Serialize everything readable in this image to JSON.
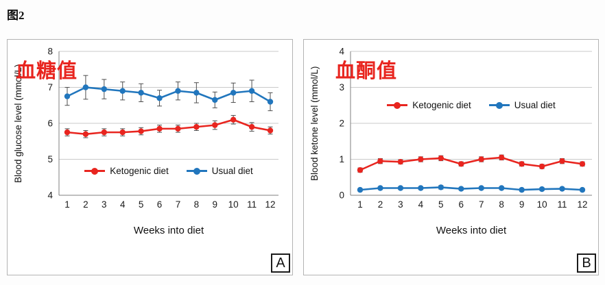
{
  "figure_label": "图2",
  "chart_data": [
    {
      "type": "line",
      "panel_label": "A",
      "annotation": "血糖值",
      "annotation_color": "#e8251f",
      "ylabel": "Blood glucose level (mmol/L)",
      "xlabel": "Weeks into diet",
      "ylim": [
        4,
        8
      ],
      "yticks": [
        4,
        5,
        6,
        7,
        8
      ],
      "x": [
        1,
        2,
        3,
        4,
        5,
        6,
        7,
        8,
        9,
        10,
        11,
        12
      ],
      "grid": true,
      "legend_position": "inside lower center",
      "series": [
        {
          "name": "Ketogenic diet",
          "color": "#e8251f",
          "values": [
            5.75,
            5.7,
            5.75,
            5.75,
            5.78,
            5.85,
            5.85,
            5.9,
            5.95,
            6.1,
            5.9,
            5.8
          ],
          "errors": [
            0.1,
            0.1,
            0.1,
            0.1,
            0.1,
            0.1,
            0.1,
            0.1,
            0.12,
            0.12,
            0.12,
            0.1
          ]
        },
        {
          "name": "Usual diet",
          "color": "#2176bd",
          "values": [
            6.75,
            7.0,
            6.95,
            6.9,
            6.85,
            6.7,
            6.9,
            6.85,
            6.65,
            6.85,
            6.9,
            6.6
          ],
          "errors": [
            0.25,
            0.33,
            0.27,
            0.25,
            0.25,
            0.22,
            0.25,
            0.28,
            0.22,
            0.27,
            0.3,
            0.25
          ]
        }
      ]
    },
    {
      "type": "line",
      "panel_label": "B",
      "annotation": "血酮值",
      "annotation_color": "#e8251f",
      "ylabel": "Blood ketone level (mmol/L)",
      "xlabel": "Weeks into diet",
      "ylim": [
        0,
        4
      ],
      "yticks": [
        0,
        1,
        2,
        3,
        4
      ],
      "x": [
        1,
        2,
        3,
        4,
        5,
        6,
        7,
        8,
        9,
        10,
        11,
        12
      ],
      "grid": true,
      "legend_position": "inside upper center",
      "series": [
        {
          "name": "Ketogenic diet",
          "color": "#e8251f",
          "values": [
            0.7,
            0.95,
            0.93,
            1.0,
            1.03,
            0.87,
            1.0,
            1.05,
            0.87,
            0.8,
            0.95,
            0.87
          ],
          "errors": [
            0.06,
            0.07,
            0.06,
            0.07,
            0.07,
            0.06,
            0.07,
            0.07,
            0.06,
            0.06,
            0.07,
            0.06
          ]
        },
        {
          "name": "Usual diet",
          "color": "#2176bd",
          "values": [
            0.15,
            0.2,
            0.2,
            0.2,
            0.22,
            0.18,
            0.2,
            0.2,
            0.15,
            0.17,
            0.18,
            0.15
          ],
          "errors": [
            0.04,
            0.04,
            0.04,
            0.04,
            0.05,
            0.04,
            0.04,
            0.04,
            0.04,
            0.04,
            0.04,
            0.04
          ]
        }
      ]
    }
  ]
}
